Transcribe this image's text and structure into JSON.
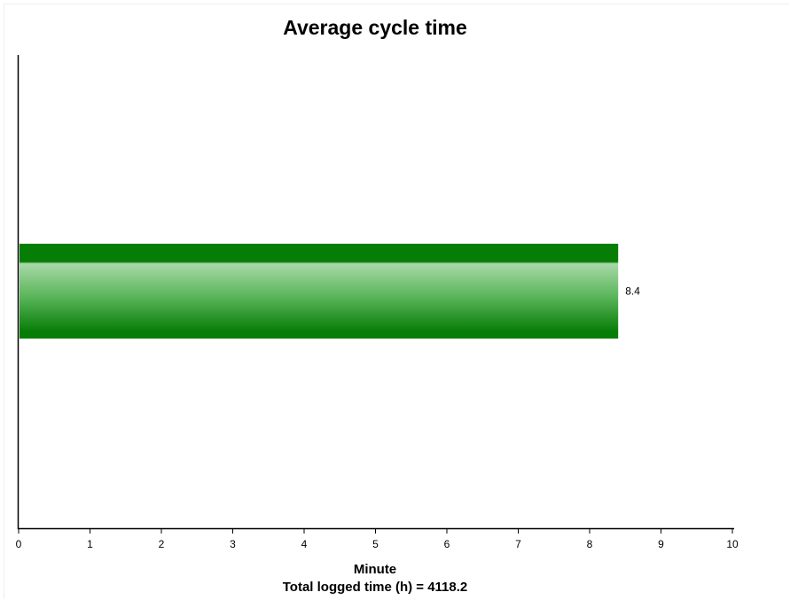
{
  "chart_data": {
    "type": "bar",
    "orientation": "horizontal",
    "title": "Average cycle time",
    "xlabel": "Minute",
    "footnote": "Total logged time (h) = 4118.2",
    "xlim": [
      0,
      10
    ],
    "xticks": [
      0,
      1,
      2,
      3,
      4,
      5,
      6,
      7,
      8,
      9,
      10
    ],
    "categories": [
      ""
    ],
    "values": [
      8.4
    ],
    "data_labels": [
      "8.4"
    ],
    "bar_color": "#067d06",
    "grid": false,
    "legend": "none"
  }
}
